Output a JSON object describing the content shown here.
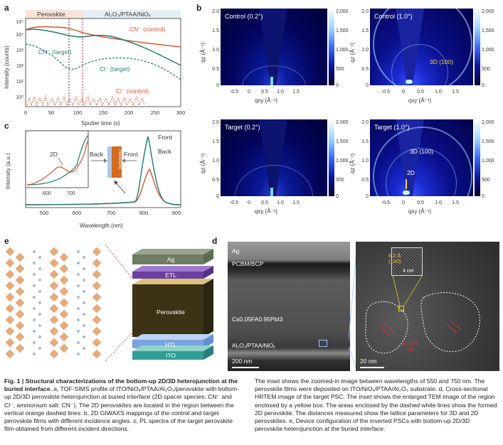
{
  "panel_labels": {
    "a": "a",
    "b": "b",
    "c": "c",
    "d": "d",
    "e": "e"
  },
  "panel_a": {
    "regions": [
      "Perovskite",
      "Al₂O₃/PTAA/NiOₓ"
    ],
    "ylabel": "Intensity (counts)",
    "xlabel": "Sputter time (s)",
    "xticks": [
      "0",
      "50",
      "100",
      "150",
      "200",
      "250",
      "300"
    ],
    "yticks": [
      "10⁰",
      "10¹",
      "10²",
      "10³",
      "10⁴",
      "10⁵"
    ],
    "annotations": [
      "CN⁻ (control)",
      "CN⁻ (target)",
      "Cl⁻ (target)",
      "Cl⁻ (control)"
    ],
    "colors": {
      "control": "#e0522a",
      "target": "#1a7d74",
      "perovskite_band": "#fbe3d6",
      "substrate_band": "#e4eef5"
    }
  },
  "panel_b": {
    "titles": [
      "Control (0.2°)",
      "Control (1.0°)",
      "Target (0.2°)",
      "Target (1.0°)"
    ],
    "xlabel": "qxy (Å⁻¹)",
    "ylabel": "qz (Å⁻¹)",
    "colorbar": [
      "2,000",
      "1,500",
      "1,000",
      "500",
      "0"
    ],
    "peak_labels": [
      "3D (100)",
      "3D (100)",
      "2D"
    ],
    "xticks": [
      "-0.5",
      "0",
      "0.5",
      "1.0",
      "1.5"
    ],
    "yticks": [
      "2.0",
      "1.5",
      "1.0",
      "0.5",
      "0"
    ]
  },
  "panel_c": {
    "ylabel": "Intensity (a.u.)",
    "xlabel": "Wavelength (nm)",
    "xticks": [
      "500",
      "600",
      "700",
      "800",
      "900"
    ],
    "inset_xticks": [
      "600",
      "700"
    ],
    "labels": {
      "front": "Front",
      "back": "Back",
      "twoD": "2D",
      "perovskite": "Perovskite",
      "back_arrow": "Back",
      "front_arrow": "Front"
    }
  },
  "panel_d": {
    "layers": [
      "Ag",
      "PCBM/BCP",
      "Cs0.05FA0.95PbI3",
      "Al₂O₃/PTAA/NiOₓ"
    ],
    "scalebar_left": "200 nm",
    "scalebar_right": "20 nm",
    "inset_scale": "4 nm",
    "lattice": [
      "6.2 Å",
      "(100)"
    ],
    "lattice_2d": [
      "21.8 Å",
      "2D"
    ]
  },
  "panel_e": {
    "layers": [
      "Ag",
      "ETL",
      "Perovskite",
      "HTL",
      "ITO"
    ]
  },
  "caption_left": {
    "bold": "Fig. 1 | Structural characterizations of the bottom-up 2D/3D heterojunction at the buried interface.",
    "text": " a, TOF-SIMS profile of ITO/NiOₓ/PTAA/Al₂O₃/perovskite with bottom-up 2D/3D perovskite heterojunction at buried interface (2D spacer species: CN⁻ and Cl⁻, ammonium salt: CN⁻). The 2D perovskites are located in the region between the vertical orange dashed lines. b, 2D GIWAXS mappings of the control and target perovskite films with different incidence angles. c, PL spectra of the target perovskite film obtained from different incident directions."
  },
  "caption_right": {
    "text": "The inset shows the zoomed-in image between wavelengths of 550 and 750 nm. The perovskite films were deposited on ITO/NiOₓ/PTAA/Al₂O₃ substrate. d, Cross-sectional HRTEM image of the target PSC. The inset shows the enlarged TEM image of the region enclosed by a yellow box. The areas enclosed by the dashed white lines show the formed 2D perovskite. The distances measured show the lattice parameters for 3D and 2D perovskites. e, Device configuration of the inverted PSCs with bottom-up 2D/3D perovskite heterojunction at the buried interface."
  }
}
